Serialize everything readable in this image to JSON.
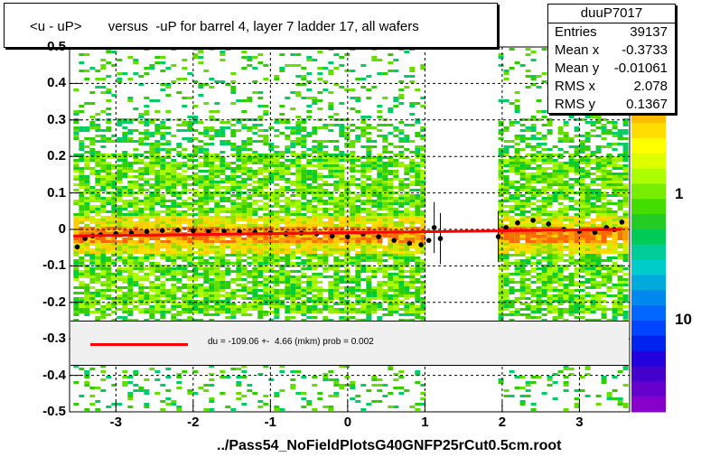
{
  "chart_data": {
    "type": "scatter",
    "title": "<u - uP>       versus  -uP for barrel 4, layer 7 ladder 17, all wafers",
    "xlabel": "../Pass54_NoFieldPlotsG40GNFP25rCut0.5cm.root",
    "ylabel": "",
    "xlim": [
      -3.6,
      3.65
    ],
    "ylim": [
      -0.5,
      0.5
    ],
    "x_ticks": [
      "-3",
      "-2",
      "-1",
      "0",
      "1",
      "2",
      "3"
    ],
    "y_ticks": [
      "-0.5",
      "-0.4",
      "-0.3",
      "-0.2",
      "-0.1",
      "0",
      "0.1",
      "0.2",
      "0.3",
      "0.4",
      "0.5"
    ],
    "z_ticks": [
      "1",
      "10"
    ],
    "grid": true,
    "profile_points": [
      {
        "x": -3.5,
        "y": -0.048
      },
      {
        "x": -3.4,
        "y": -0.025
      },
      {
        "x": -3.3,
        "y": -0.018
      },
      {
        "x": -3.2,
        "y": -0.015
      },
      {
        "x": -3.0,
        "y": -0.012
      },
      {
        "x": -2.8,
        "y": -0.01
      },
      {
        "x": -2.6,
        "y": -0.006
      },
      {
        "x": -2.4,
        "y": -0.003
      },
      {
        "x": -2.2,
        "y": -0.002
      },
      {
        "x": -2.0,
        "y": -0.004
      },
      {
        "x": -1.8,
        "y": -0.006
      },
      {
        "x": -1.6,
        "y": -0.005
      },
      {
        "x": -1.4,
        "y": -0.006
      },
      {
        "x": -1.2,
        "y": -0.008
      },
      {
        "x": -1.0,
        "y": -0.01
      },
      {
        "x": -0.8,
        "y": -0.012
      },
      {
        "x": -0.6,
        "y": -0.01
      },
      {
        "x": -0.4,
        "y": -0.012
      },
      {
        "x": -0.2,
        "y": -0.018
      },
      {
        "x": 0.0,
        "y": -0.02
      },
      {
        "x": 0.2,
        "y": -0.012
      },
      {
        "x": 0.4,
        "y": -0.02
      },
      {
        "x": 0.6,
        "y": -0.03
      },
      {
        "x": 0.8,
        "y": -0.038
      },
      {
        "x": 0.95,
        "y": -0.042
      },
      {
        "x": 1.05,
        "y": -0.03
      },
      {
        "x": 1.12,
        "y": 0.005
      },
      {
        "x": 1.2,
        "y": -0.025
      },
      {
        "x": 1.95,
        "y": -0.02
      },
      {
        "x": 2.05,
        "y": 0.005
      },
      {
        "x": 2.2,
        "y": 0.018
      },
      {
        "x": 2.4,
        "y": 0.025
      },
      {
        "x": 2.6,
        "y": 0.015
      },
      {
        "x": 2.8,
        "y": 0.0
      },
      {
        "x": 3.0,
        "y": -0.005
      },
      {
        "x": 3.2,
        "y": -0.008
      },
      {
        "x": 3.35,
        "y": 0.005
      },
      {
        "x": 3.45,
        "y": 0.0
      },
      {
        "x": 3.55,
        "y": 0.02
      }
    ],
    "fit_line": {
      "x": [
        -3.55,
        3.55
      ],
      "y": [
        -0.018,
        0.0
      ],
      "color": "#ff0000"
    },
    "stats": {
      "name": "duuP7017",
      "rows": [
        {
          "label": "Entries",
          "value": "39137"
        },
        {
          "label": "Mean x",
          "value": "-0.3733"
        },
        {
          "label": "Mean y",
          "value": "-0.01061"
        },
        {
          "label": "RMS x",
          "value": "2.078"
        },
        {
          "label": "RMS y",
          "value": "0.1367"
        }
      ]
    },
    "fit_legend": "du = -109.06 +-  4.66 (mkm) prob = 0.002"
  }
}
